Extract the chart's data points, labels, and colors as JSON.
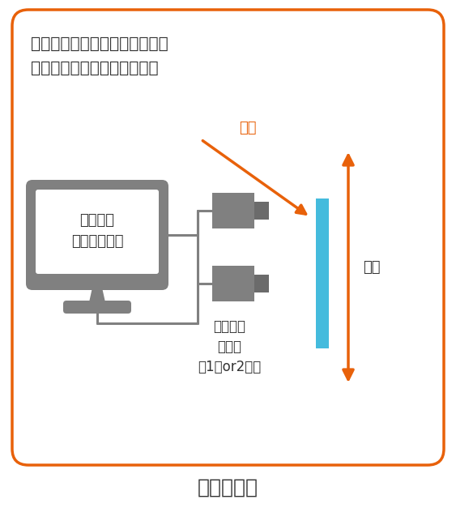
{
  "title": "測定装置例",
  "subtitle_line1": "試料表面のランダムパターンを",
  "subtitle_line2": "デジタル画像として取り込む",
  "label_pc": "パソコン\n（解析装置）",
  "label_camera": "デジタル\nカメラ\n（1台or2台）",
  "label_sample": "試料",
  "label_light": "光源",
  "color_orange": "#E8610A",
  "color_gray": "#808080",
  "color_gray_dark": "#6B6B6B",
  "color_blue_sample": "#44BBDD",
  "color_border": "#E8610A",
  "color_bg_inner": "#FFFFFF",
  "color_bg_outer": "#FFFFFF",
  "color_text": "#333333",
  "fig_w": 5.63,
  "fig_h": 6.27,
  "dpi": 100
}
